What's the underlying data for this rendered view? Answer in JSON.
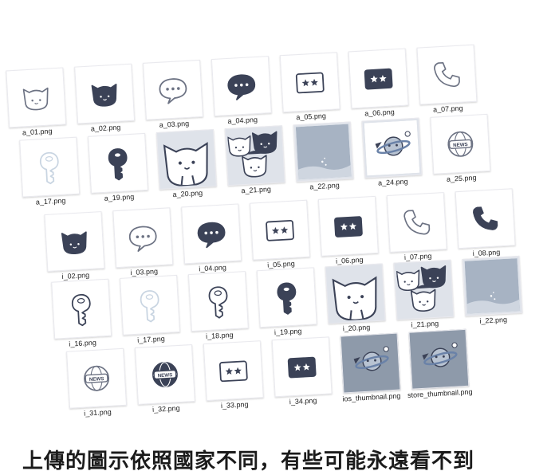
{
  "theme": {
    "ink": "#3b4257",
    "line": "#6c7283",
    "pale": "#c9d5e2",
    "bg": "#dfe3ea",
    "bgDark": "#8e9aaa"
  },
  "caption": "上傳的圖示依照國家不同，有些可能永遠看不到",
  "files": [
    {
      "label": "a_01.png",
      "icon": "cat-outline-icon"
    },
    {
      "label": "a_02.png",
      "icon": "cat-filled-icon"
    },
    {
      "label": "a_03.png",
      "icon": "chat-bubble-outline-icon"
    },
    {
      "label": "a_04.png",
      "icon": "chat-bubble-filled-icon"
    },
    {
      "label": "a_05.png",
      "icon": "stars-card-outline-icon"
    },
    {
      "label": "a_06.png",
      "icon": "stars-card-filled-icon"
    },
    {
      "label": "a_07.png",
      "icon": "phone-outline-icon"
    },
    {
      "label": "a_17.png",
      "icon": "key-pale-icon"
    },
    {
      "label": "a_19.png",
      "icon": "key-filled-icon"
    },
    {
      "label": "a_20.png",
      "icon": "cat-illustration-icon"
    },
    {
      "label": "a_21.png",
      "icon": "three-cats-illustration-icon"
    },
    {
      "label": "a_22.png",
      "icon": "sky-illustration-icon"
    },
    {
      "label": "a_24.png",
      "icon": "planet-illustration-icon"
    },
    {
      "label": "a_25.png",
      "icon": "news-globe-outline-icon"
    },
    {
      "label": "i_02.png",
      "icon": "cat-filled-icon"
    },
    {
      "label": "i_03.png",
      "icon": "chat-bubble-outline-icon"
    },
    {
      "label": "i_04.png",
      "icon": "chat-bubble-filled-icon"
    },
    {
      "label": "i_05.png",
      "icon": "stars-card-outline-icon"
    },
    {
      "label": "i_06.png",
      "icon": "stars-card-filled-icon"
    },
    {
      "label": "i_07.png",
      "icon": "phone-outline-icon"
    },
    {
      "label": "i_08.png",
      "icon": "phone-filled-icon"
    },
    {
      "label": "i_16.png",
      "icon": "key-outline-icon"
    },
    {
      "label": "i_17.png",
      "icon": "key-pale-icon"
    },
    {
      "label": "i_18.png",
      "icon": "key-outline-icon"
    },
    {
      "label": "i_19.png",
      "icon": "key-filled-icon"
    },
    {
      "label": "i_20.png",
      "icon": "cat-illustration-icon"
    },
    {
      "label": "i_21.png",
      "icon": "three-cats-illustration-icon"
    },
    {
      "label": "i_22.png",
      "icon": "sky-illustration-icon"
    },
    {
      "label": "i_31.png",
      "icon": "news-globe-outline-icon"
    },
    {
      "label": "i_32.png",
      "icon": "news-globe-filled-icon"
    },
    {
      "label": "i_33.png",
      "icon": "stars-card-outline-icon"
    },
    {
      "label": "i_34.png",
      "icon": "stars-card-filled-icon"
    },
    {
      "label": "ios_thumbnail.png",
      "icon": "planet-dark-illustration-icon"
    },
    {
      "label": "store_thumbnail.png",
      "icon": "planet-dark-illustration-icon"
    }
  ]
}
